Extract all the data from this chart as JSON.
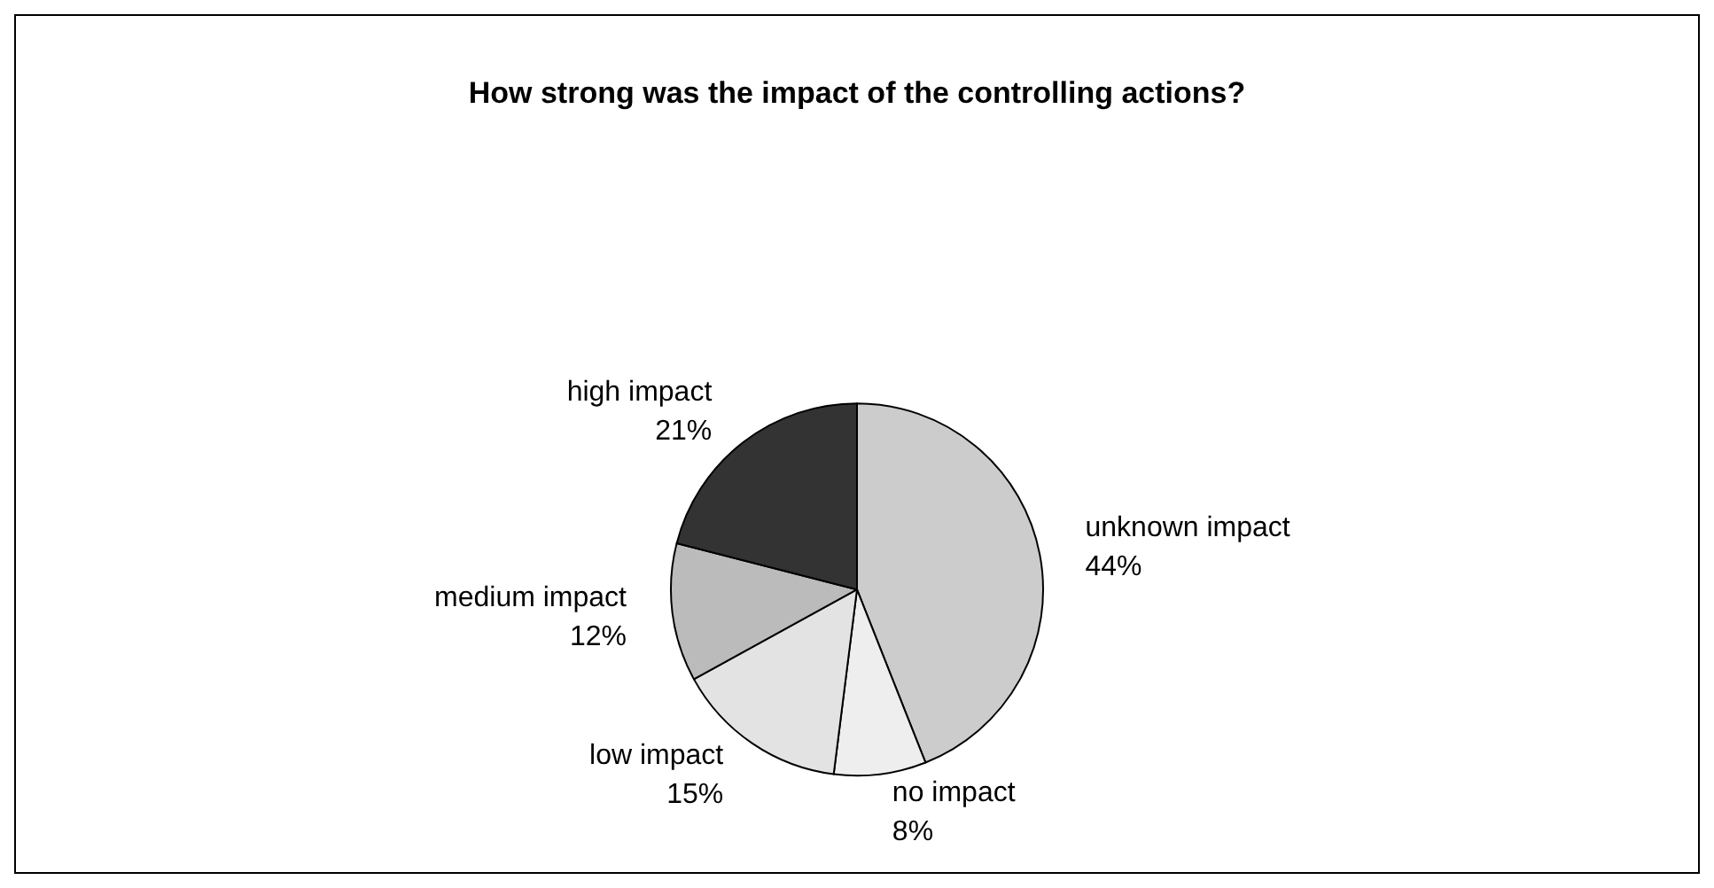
{
  "chart_data": {
    "type": "pie",
    "title": "How strong was the impact of the controlling actions?",
    "categories": [
      "unknown impact",
      "no impact",
      "low impact",
      "medium impact",
      "high impact"
    ],
    "values": [
      44,
      8,
      15,
      12,
      21
    ],
    "colors": [
      "#cccccc",
      "#eeeeee",
      "#e3e3e3",
      "#bbbbbb",
      "#333333"
    ],
    "value_labels": [
      "44%",
      "8%",
      "15%",
      "12%",
      "21%"
    ],
    "legend": false
  }
}
